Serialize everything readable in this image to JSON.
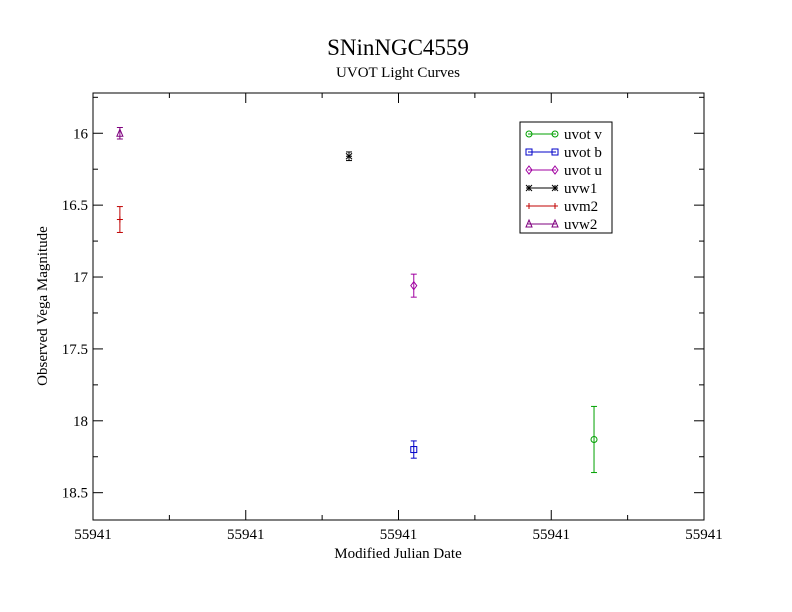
{
  "chart_data": {
    "type": "scatter",
    "title": "SNinNGC4559",
    "subtitle": "UVOT Light Curves",
    "xlabel": "Modified Julian Date",
    "ylabel": "Observed Vega Magnitude",
    "x_tick_labels": [
      "55941",
      "55941",
      "55941",
      "55941",
      "55941"
    ],
    "y_ticks": [
      16,
      16.5,
      17,
      17.5,
      18,
      18.5
    ],
    "y_tick_labels": [
      "16",
      "16.5",
      "17",
      "17.5",
      "18",
      "18.5"
    ],
    "xlim": [
      0,
      1
    ],
    "ylim": [
      15.72,
      18.69
    ],
    "y_inverted": true,
    "grid": false,
    "legend_position": "top-right",
    "series": [
      {
        "name": "uvot v",
        "color": "#00a000",
        "marker": "circle",
        "points": [
          {
            "x": 0.82,
            "y": 18.13,
            "err": 0.23
          }
        ]
      },
      {
        "name": "uvot b",
        "color": "#0000c8",
        "marker": "square",
        "points": [
          {
            "x": 0.525,
            "y": 18.2,
            "err": 0.06
          }
        ]
      },
      {
        "name": "uvot u",
        "color": "#a000a0",
        "marker": "diamond",
        "points": [
          {
            "x": 0.525,
            "y": 17.06,
            "err": 0.08
          }
        ]
      },
      {
        "name": "uvw1",
        "color": "#000000",
        "marker": "star",
        "points": [
          {
            "x": 0.419,
            "y": 16.16,
            "err": 0.03
          }
        ]
      },
      {
        "name": "uvm2",
        "color": "#c00000",
        "marker": "plus",
        "points": [
          {
            "x": 0.044,
            "y": 16.6,
            "err": 0.09
          }
        ]
      },
      {
        "name": "uvw2",
        "color": "#7f007f",
        "marker": "triangle",
        "points": [
          {
            "x": 0.044,
            "y": 16.0,
            "err": 0.04
          }
        ]
      }
    ]
  }
}
